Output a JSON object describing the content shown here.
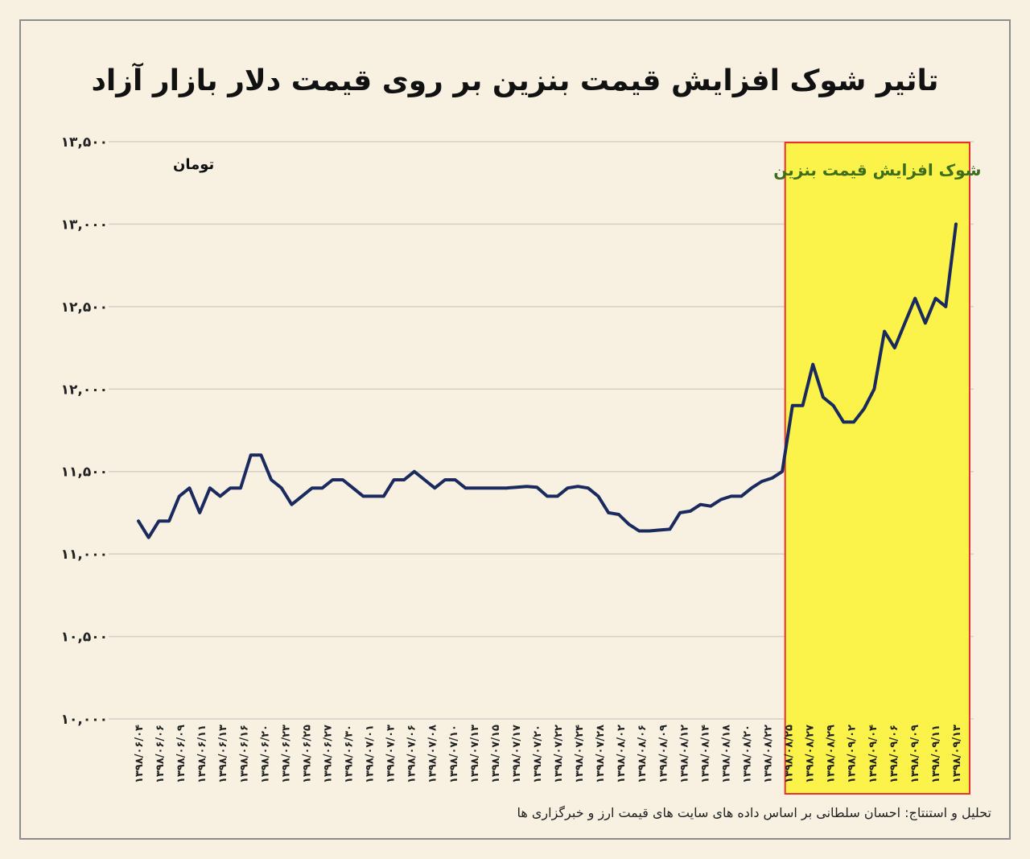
{
  "title": "تاثیر شوک افزایش قیمت بنزین بر روی قیمت دلار بازار آزاد",
  "footer": "تحلیل و استنتاج: احسان سلطانی بر اساس داده های سایت های قیمت ارز و خبرگزاری ها",
  "colors": {
    "background": "#f8f1e2",
    "line": "#1b2a5e",
    "highlight": "#fbf24a",
    "highlight_border": "#e8322a",
    "highlight_text": "#3e6e1a"
  },
  "chart_data": {
    "type": "line",
    "title": "تاثیر شوک افزایش قیمت بنزین بر روی قیمت دلار بازار آزاد",
    "unit_label": "تومان",
    "ylim": [
      10000,
      13500
    ],
    "yticks": [
      10000,
      10500,
      11000,
      11500,
      12000,
      12500,
      13000,
      13500
    ],
    "ytick_labels": [
      "۱۰,۰۰۰",
      "۱۰,۵۰۰",
      "۱۱,۰۰۰",
      "۱۱,۵۰۰",
      "۱۲,۰۰۰",
      "۱۲,۵۰۰",
      "۱۳,۰۰۰",
      "۱۳,۵۰۰"
    ],
    "grid": true,
    "x_labels": [
      "۱۳۹۸/۰۶/۰۴",
      "۱۳۹۸/۰۶/۰۶",
      "۱۳۹۸/۰۶/۰۹",
      "۱۳۹۸/۰۶/۱۱",
      "۱۳۹۸/۰۶/۱۳",
      "۱۳۹۸/۰۶/۱۶",
      "۱۳۹۸/۰۶/۲۰",
      "۱۳۹۸/۰۶/۲۳",
      "۱۳۹۸/۰۶/۲۵",
      "۱۳۹۸/۰۶/۲۷",
      "۱۳۹۸/۰۶/۳۰",
      "۱۳۹۸/۰۷/۰۱",
      "۱۳۹۸/۰۷/۰۳",
      "۱۳۹۸/۰۷/۰۶",
      "۱۳۹۸/۰۷/۰۸",
      "۱۳۹۸/۰۷/۱۰",
      "۱۳۹۸/۰۷/۱۳",
      "۱۳۹۸/۰۷/۱۵",
      "۱۳۹۸/۰۷/۱۷",
      "۱۳۹۸/۰۷/۲۰",
      "۱۳۹۸/۰۷/۲۲",
      "۱۳۹۸/۰۷/۲۴",
      "۱۳۹۸/۰۷/۲۸",
      "۱۳۹۸/۰۸/۰۲",
      "۱۳۹۸/۰۸/۰۶",
      "۱۳۹۸/۰۸/۰۹",
      "۱۳۹۸/۰۸/۱۲",
      "۱۳۹۸/۰۸/۱۴",
      "۱۳۹۸/۰۸/۱۸",
      "۱۳۹۸/۰۸/۲۰",
      "۱۳۹۸/۰۸/۲۲",
      "۱۳۹۸/۰۸/۲۵",
      "۱۳۹۸/۰۸/۲۷",
      "۱۳۹۸/۰۸/۲۹",
      "۱۳۹۸/۰۹/۰۲",
      "۱۳۹۸/۰۹/۰۴",
      "۱۳۹۸/۰۹/۰۶",
      "۱۳۹۸/۰۹/۰۹",
      "۱۳۹۸/۰۹/۱۱",
      "۱۳۹۸/۰۹/۱۳"
    ],
    "series": [
      {
        "values": [
          11200,
          11100,
          11200,
          11200,
          11350,
          11400,
          11250,
          11400,
          11350,
          11400,
          11400,
          11600,
          11600,
          11450,
          11400,
          11300,
          11350,
          11400,
          11400,
          11450,
          11450,
          11400,
          11350,
          11350,
          11350,
          11450,
          11450,
          11500,
          11450,
          11400,
          11450,
          11450,
          11400,
          11400,
          11400,
          11400,
          11400,
          11405,
          11410,
          11405,
          11350,
          11350,
          11400,
          11410,
          11400,
          11350,
          11250,
          11240,
          11180,
          11140,
          11140,
          11145,
          11150,
          11250,
          11260,
          11300,
          11290,
          11330,
          11350,
          11350,
          11400,
          11440,
          11460,
          11500,
          11900,
          11900,
          12150,
          11950,
          11900,
          11800,
          11800,
          11880,
          12000,
          12350,
          12250,
          12400,
          12550,
          12400,
          12550,
          12500,
          13000
        ]
      }
    ],
    "annotation": {
      "label": "شوک افزایش قیمت بنزین",
      "x_start_label": "۱۳۹۸/۰۸/۲۲",
      "x_end_label": "۱۳۹۸/۰۹/۱۳"
    }
  }
}
